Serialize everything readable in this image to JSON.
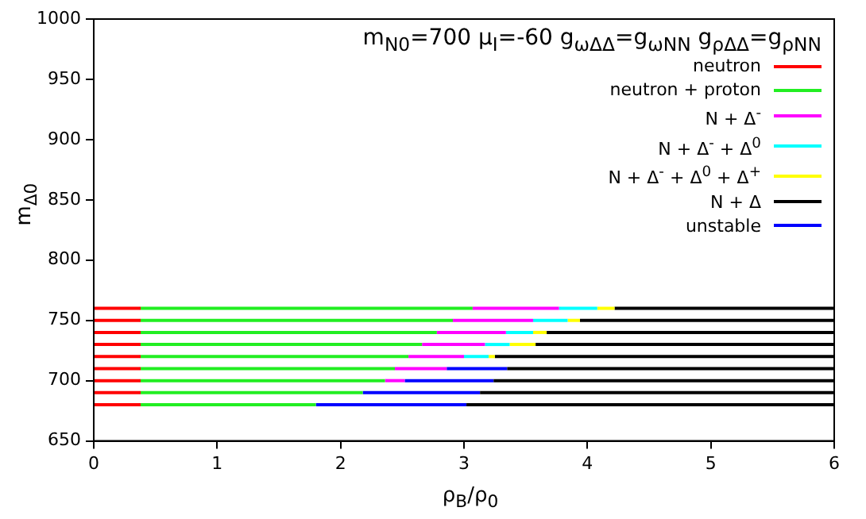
{
  "chart_data": {
    "type": "line",
    "title": "m$_{N0}$=700 μ$_{I}$=-60 g$_{ωΔΔ}$=g$_{ωNN}$ g$_{ρΔΔ}$=g$_{ρNN}$",
    "xlabel": "ρ$_{B}$/ρ$_{0}$",
    "ylabel": "m$_{Δ0}$",
    "xlim": [
      0,
      6
    ],
    "xticks": [
      0,
      1,
      2,
      3,
      4,
      5,
      6
    ],
    "ylim": [
      650,
      1000
    ],
    "yticks": [
      650,
      700,
      750,
      800,
      850,
      900,
      950,
      1000
    ],
    "grid": false,
    "legend": "top right",
    "marker": "none",
    "line_style": "solid",
    "series": [
      {
        "name": "neutron",
        "color": "#ff0000",
        "x": [
          0,
          0.38
        ],
        "values": [
          760,
          760
        ]
      },
      {
        "color": "#ff0000",
        "x": [
          0,
          0.38
        ],
        "values": [
          750,
          750
        ]
      },
      {
        "color": "#ff0000",
        "x": [
          0,
          0.38
        ],
        "values": [
          740,
          740
        ]
      },
      {
        "color": "#ff0000",
        "x": [
          0,
          0.38
        ],
        "values": [
          730,
          730
        ]
      },
      {
        "color": "#ff0000",
        "x": [
          0,
          0.38
        ],
        "values": [
          720,
          720
        ]
      },
      {
        "color": "#ff0000",
        "x": [
          0,
          0.38
        ],
        "values": [
          710,
          710
        ]
      },
      {
        "color": "#ff0000",
        "x": [
          0,
          0.38
        ],
        "values": [
          700,
          700
        ]
      },
      {
        "color": "#ff0000",
        "x": [
          0,
          0.38
        ],
        "values": [
          690,
          690
        ]
      },
      {
        "color": "#ff0000",
        "x": [
          0,
          0.38
        ],
        "values": [
          680,
          680
        ]
      },
      {
        "name": "neutron + proton",
        "color": "#22ee22",
        "x": [
          0.38,
          3.07
        ],
        "values": [
          760,
          760
        ]
      },
      {
        "color": "#22ee22",
        "x": [
          0.38,
          2.91
        ],
        "values": [
          750,
          750
        ]
      },
      {
        "color": "#22ee22",
        "x": [
          0.38,
          2.78
        ],
        "values": [
          740,
          740
        ]
      },
      {
        "color": "#22ee22",
        "x": [
          0.38,
          2.66
        ],
        "values": [
          730,
          730
        ]
      },
      {
        "color": "#22ee22",
        "x": [
          0.38,
          2.55
        ],
        "values": [
          720,
          720
        ]
      },
      {
        "color": "#22ee22",
        "x": [
          0.38,
          2.44
        ],
        "values": [
          710,
          710
        ]
      },
      {
        "color": "#22ee22",
        "x": [
          0.38,
          2.36
        ],
        "values": [
          700,
          700
        ]
      },
      {
        "color": "#22ee22",
        "x": [
          0.38,
          2.18
        ],
        "values": [
          690,
          690
        ]
      },
      {
        "color": "#22ee22",
        "x": [
          0.38,
          1.8
        ],
        "values": [
          680,
          680
        ]
      },
      {
        "name": "N + Δ$^{-}$",
        "color": "#ff00ff",
        "x": [
          3.07,
          3.77
        ],
        "values": [
          760,
          760
        ]
      },
      {
        "color": "#ff00ff",
        "x": [
          2.91,
          3.56
        ],
        "values": [
          750,
          750
        ]
      },
      {
        "color": "#ff00ff",
        "x": [
          2.78,
          3.34
        ],
        "values": [
          740,
          740
        ]
      },
      {
        "color": "#ff00ff",
        "x": [
          2.66,
          3.17
        ],
        "values": [
          730,
          730
        ]
      },
      {
        "color": "#ff00ff",
        "x": [
          2.55,
          3.0
        ],
        "values": [
          720,
          720
        ]
      },
      {
        "color": "#ff00ff",
        "x": [
          2.44,
          2.86
        ],
        "values": [
          710,
          710
        ]
      },
      {
        "color": "#ff00ff",
        "x": [
          2.36,
          2.52
        ],
        "values": [
          700,
          700
        ]
      },
      {
        "name": "N + Δ$^{-}$ + Δ$^{0}$",
        "color": "#00ffff",
        "x": [
          3.77,
          4.08
        ],
        "values": [
          760,
          760
        ]
      },
      {
        "color": "#00ffff",
        "x": [
          3.56,
          3.84
        ],
        "values": [
          750,
          750
        ]
      },
      {
        "color": "#00ffff",
        "x": [
          3.34,
          3.56
        ],
        "values": [
          740,
          740
        ]
      },
      {
        "color": "#00ffff",
        "x": [
          3.17,
          3.37
        ],
        "values": [
          730,
          730
        ]
      },
      {
        "color": "#00ffff",
        "x": [
          3.0,
          3.2
        ],
        "values": [
          720,
          720
        ]
      },
      {
        "name": "N + Δ$^{-}$ + Δ$^{0}$ + Δ$^{+}$",
        "color": "#ffff00",
        "x": [
          4.08,
          4.22
        ],
        "values": [
          760,
          760
        ]
      },
      {
        "color": "#ffff00",
        "x": [
          3.84,
          3.94
        ],
        "values": [
          750,
          750
        ]
      },
      {
        "color": "#ffff00",
        "x": [
          3.56,
          3.67
        ],
        "values": [
          740,
          740
        ]
      },
      {
        "color": "#ffff00",
        "x": [
          3.37,
          3.58
        ],
        "values": [
          730,
          730
        ]
      },
      {
        "color": "#ffff00",
        "x": [
          3.2,
          3.25
        ],
        "values": [
          720,
          720
        ]
      },
      {
        "name": "N + Δ",
        "color": "#000000",
        "x": [
          4.22,
          6
        ],
        "values": [
          760,
          760
        ]
      },
      {
        "color": "#000000",
        "x": [
          3.94,
          6
        ],
        "values": [
          750,
          750
        ]
      },
      {
        "color": "#000000",
        "x": [
          3.67,
          6
        ],
        "values": [
          740,
          740
        ]
      },
      {
        "color": "#000000",
        "x": [
          3.58,
          6
        ],
        "values": [
          730,
          730
        ]
      },
      {
        "color": "#000000",
        "x": [
          3.25,
          6
        ],
        "values": [
          720,
          720
        ]
      },
      {
        "color": "#000000",
        "x": [
          3.35,
          6
        ],
        "values": [
          710,
          710
        ]
      },
      {
        "color": "#000000",
        "x": [
          3.24,
          6
        ],
        "values": [
          700,
          700
        ]
      },
      {
        "color": "#000000",
        "x": [
          3.13,
          6
        ],
        "values": [
          690,
          690
        ]
      },
      {
        "color": "#000000",
        "x": [
          3.02,
          6
        ],
        "values": [
          680,
          680
        ]
      },
      {
        "name": "unstable",
        "color": "#0000ff",
        "x": [
          2.86,
          3.35
        ],
        "values": [
          710,
          710
        ]
      },
      {
        "color": "#0000ff",
        "x": [
          2.52,
          3.24
        ],
        "values": [
          700,
          700
        ]
      },
      {
        "color": "#0000ff",
        "x": [
          2.18,
          3.13
        ],
        "values": [
          690,
          690
        ]
      },
      {
        "color": "#0000ff",
        "x": [
          1.8,
          3.02
        ],
        "values": [
          680,
          680
        ]
      }
    ]
  }
}
